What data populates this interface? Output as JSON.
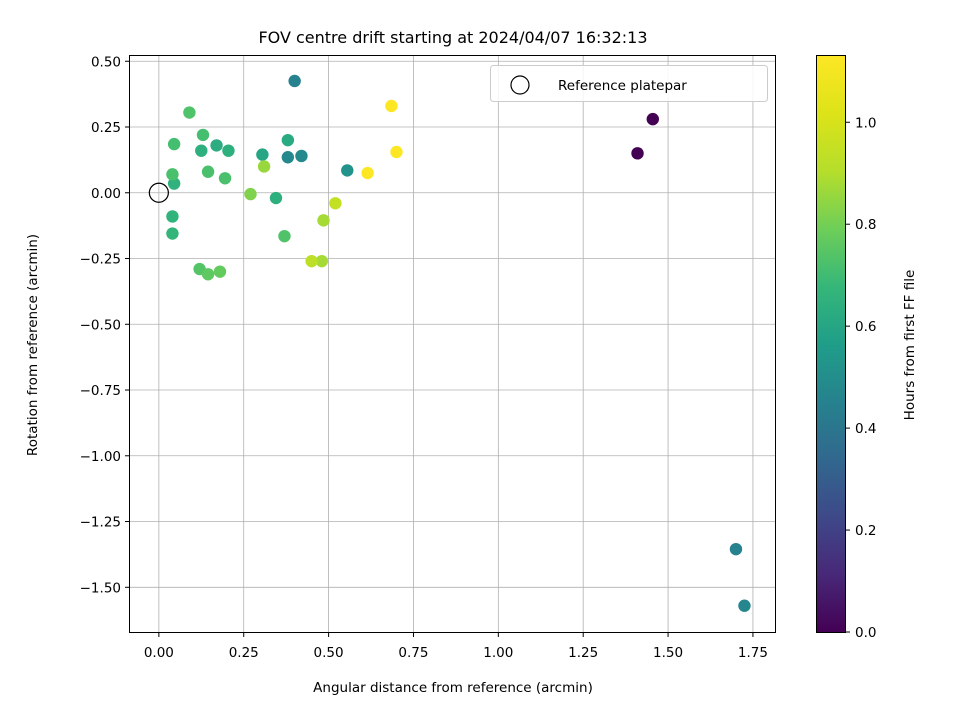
{
  "chart_data": {
    "type": "scatter",
    "title": "FOV centre drift starting at 2024/04/07 16:32:13",
    "xlabel": "Angular distance from reference (arcmin)",
    "ylabel": "Rotation from reference (arcmin)",
    "xlim": [
      -0.085,
      1.815
    ],
    "ylim": [
      -1.67,
      0.52
    ],
    "xticks": [
      "0.00",
      "0.25",
      "0.50",
      "0.75",
      "1.00",
      "1.25",
      "1.50",
      "1.75"
    ],
    "xtick_values": [
      0,
      0.25,
      0.5,
      0.75,
      1.0,
      1.25,
      1.5,
      1.75
    ],
    "yticks": [
      "0.50",
      "0.25",
      "0.00",
      "−0.25",
      "−0.50",
      "−0.75",
      "−1.00",
      "−1.25",
      "−1.50"
    ],
    "ytick_values": [
      0.5,
      0.25,
      0,
      -0.25,
      -0.5,
      -0.75,
      -1.0,
      -1.25,
      -1.5
    ],
    "grid": true,
    "legend": {
      "position": "top-right",
      "entries": [
        "Reference platepar"
      ]
    },
    "colorbar": {
      "label": "Hours from first FF file",
      "colormap": "viridis",
      "range": [
        0,
        1.13
      ],
      "ticks": [
        "0.0",
        "0.2",
        "0.4",
        "0.6",
        "0.8",
        "1.0"
      ],
      "tick_values": [
        0,
        0.2,
        0.4,
        0.6,
        0.8,
        1.0
      ]
    },
    "reference_point": {
      "x": 0.0,
      "y": 0.0
    },
    "points": [
      {
        "x": 1.41,
        "y": 0.15,
        "c": 0.0
      },
      {
        "x": 1.455,
        "y": 0.28,
        "c": 0.0
      },
      {
        "x": 1.7,
        "y": -1.355,
        "c": 0.45
      },
      {
        "x": 1.725,
        "y": -1.57,
        "c": 0.47
      },
      {
        "x": 0.4,
        "y": 0.425,
        "c": 0.45
      },
      {
        "x": 0.42,
        "y": 0.14,
        "c": 0.48
      },
      {
        "x": 0.38,
        "y": 0.135,
        "c": 0.48
      },
      {
        "x": 0.555,
        "y": 0.085,
        "c": 0.52
      },
      {
        "x": 0.305,
        "y": 0.145,
        "c": 0.6
      },
      {
        "x": 0.38,
        "y": 0.2,
        "c": 0.62
      },
      {
        "x": 0.345,
        "y": -0.02,
        "c": 0.64
      },
      {
        "x": 0.17,
        "y": 0.18,
        "c": 0.63
      },
      {
        "x": 0.205,
        "y": 0.16,
        "c": 0.64
      },
      {
        "x": 0.125,
        "y": 0.16,
        "c": 0.64
      },
      {
        "x": 0.045,
        "y": 0.035,
        "c": 0.65
      },
      {
        "x": 0.04,
        "y": -0.09,
        "c": 0.66
      },
      {
        "x": 0.04,
        "y": -0.155,
        "c": 0.67
      },
      {
        "x": 0.045,
        "y": 0.185,
        "c": 0.71
      },
      {
        "x": 0.13,
        "y": 0.22,
        "c": 0.71
      },
      {
        "x": 0.04,
        "y": 0.07,
        "c": 0.72
      },
      {
        "x": 0.145,
        "y": 0.08,
        "c": 0.72
      },
      {
        "x": 0.195,
        "y": 0.055,
        "c": 0.72
      },
      {
        "x": 0.09,
        "y": 0.305,
        "c": 0.73
      },
      {
        "x": 0.37,
        "y": -0.165,
        "c": 0.73
      },
      {
        "x": 0.12,
        "y": -0.29,
        "c": 0.74
      },
      {
        "x": 0.145,
        "y": -0.31,
        "c": 0.76
      },
      {
        "x": 0.18,
        "y": -0.3,
        "c": 0.77
      },
      {
        "x": 0.27,
        "y": -0.005,
        "c": 0.82
      },
      {
        "x": 0.31,
        "y": 0.1,
        "c": 0.86
      },
      {
        "x": 0.485,
        "y": -0.105,
        "c": 0.88
      },
      {
        "x": 0.48,
        "y": -0.26,
        "c": 0.88
      },
      {
        "x": 0.45,
        "y": -0.26,
        "c": 0.93
      },
      {
        "x": 0.52,
        "y": -0.04,
        "c": 0.95
      },
      {
        "x": 0.615,
        "y": 0.075,
        "c": 1.13
      },
      {
        "x": 0.685,
        "y": 0.33,
        "c": 1.13
      },
      {
        "x": 0.7,
        "y": 0.155,
        "c": 1.13
      }
    ]
  }
}
